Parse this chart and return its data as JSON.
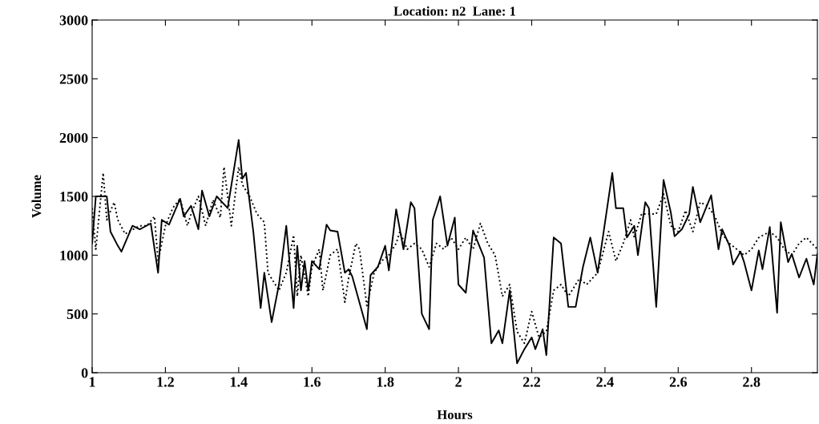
{
  "chart_data": {
    "type": "line",
    "title": "Location: n2  Lane: 1",
    "xlabel": "Hours",
    "ylabel": "Volume",
    "xlim": [
      1,
      2.98
    ],
    "xticks": [
      1,
      1.2,
      1.4,
      1.6,
      1.8,
      2,
      2.2,
      2.4,
      2.6,
      2.8
    ],
    "ylim": [
      0,
      3000
    ],
    "yticks": [
      0,
      500,
      1000,
      1500,
      2000,
      2500,
      3000
    ],
    "grid": false,
    "legend": false,
    "series": [
      {
        "color": "#000000",
        "line_style": "solid",
        "x": [
          1.0,
          1.01,
          1.04,
          1.05,
          1.07,
          1.08,
          1.11,
          1.13,
          1.16,
          1.18,
          1.19,
          1.21,
          1.24,
          1.25,
          1.27,
          1.29,
          1.3,
          1.32,
          1.34,
          1.37,
          1.4,
          1.41,
          1.42,
          1.44,
          1.46,
          1.47,
          1.49,
          1.51,
          1.53,
          1.55,
          1.56,
          1.57,
          1.58,
          1.59,
          1.6,
          1.62,
          1.64,
          1.65,
          1.67,
          1.69,
          1.7,
          1.71,
          1.75,
          1.76,
          1.78,
          1.8,
          1.81,
          1.83,
          1.85,
          1.87,
          1.88,
          1.9,
          1.92,
          1.93,
          1.95,
          1.97,
          1.99,
          2.0,
          2.02,
          2.04,
          2.07,
          2.09,
          2.11,
          2.12,
          2.14,
          2.16,
          2.18,
          2.2,
          2.21,
          2.23,
          2.24,
          2.26,
          2.28,
          2.3,
          2.32,
          2.34,
          2.36,
          2.38,
          2.42,
          2.43,
          2.45,
          2.46,
          2.48,
          2.49,
          2.51,
          2.52,
          2.54,
          2.56,
          2.58,
          2.59,
          2.61,
          2.63,
          2.64,
          2.66,
          2.69,
          2.71,
          2.72,
          2.74,
          2.75,
          2.77,
          2.78,
          2.8,
          2.82,
          2.83,
          2.85,
          2.87,
          2.88,
          2.9,
          2.91,
          2.93,
          2.95,
          2.97,
          2.98
        ],
        "values": [
          1100,
          1500,
          1500,
          1200,
          1080,
          1030,
          1250,
          1220,
          1270,
          850,
          1300,
          1260,
          1480,
          1330,
          1420,
          1220,
          1550,
          1330,
          1500,
          1400,
          1980,
          1650,
          1700,
          1200,
          550,
          850,
          430,
          750,
          1250,
          550,
          1080,
          700,
          950,
          700,
          950,
          880,
          1260,
          1210,
          1200,
          850,
          880,
          820,
          370,
          830,
          900,
          1080,
          870,
          1390,
          1050,
          1450,
          1400,
          500,
          370,
          1300,
          1500,
          1080,
          1320,
          750,
          680,
          1210,
          980,
          250,
          360,
          250,
          700,
          80,
          200,
          300,
          200,
          370,
          150,
          1150,
          1100,
          560,
          560,
          900,
          1150,
          850,
          1700,
          1400,
          1400,
          1150,
          1250,
          1000,
          1450,
          1400,
          560,
          1640,
          1360,
          1160,
          1220,
          1350,
          1580,
          1280,
          1510,
          1050,
          1220,
          1080,
          920,
          1030,
          940,
          700,
          1040,
          880,
          1240,
          510,
          1280,
          940,
          1010,
          810,
          970,
          750,
          1010
        ]
      },
      {
        "color": "#000000",
        "line_style": "dotted",
        "x": [
          1.0,
          1.01,
          1.03,
          1.04,
          1.06,
          1.07,
          1.09,
          1.1,
          1.13,
          1.15,
          1.17,
          1.18,
          1.2,
          1.22,
          1.24,
          1.26,
          1.27,
          1.29,
          1.31,
          1.33,
          1.35,
          1.36,
          1.38,
          1.4,
          1.41,
          1.43,
          1.45,
          1.47,
          1.48,
          1.51,
          1.53,
          1.55,
          1.56,
          1.57,
          1.59,
          1.6,
          1.62,
          1.63,
          1.65,
          1.67,
          1.69,
          1.7,
          1.72,
          1.73,
          1.75,
          1.77,
          1.79,
          1.81,
          1.83,
          1.84,
          1.86,
          1.88,
          1.9,
          1.92,
          1.94,
          1.96,
          1.98,
          2.0,
          2.02,
          2.04,
          2.06,
          2.08,
          2.1,
          2.12,
          2.14,
          2.16,
          2.18,
          2.2,
          2.22,
          2.24,
          2.26,
          2.28,
          2.3,
          2.33,
          2.35,
          2.38,
          2.41,
          2.43,
          2.45,
          2.47,
          2.48,
          2.5,
          2.52,
          2.54,
          2.56,
          2.58,
          2.6,
          2.62,
          2.64,
          2.66,
          2.68,
          2.7,
          2.72,
          2.74,
          2.76,
          2.78,
          2.8,
          2.82,
          2.85,
          2.87,
          2.89,
          2.91,
          2.93,
          2.95,
          2.98
        ],
        "values": [
          1400,
          1050,
          1700,
          1300,
          1450,
          1300,
          1180,
          1200,
          1250,
          1250,
          1330,
          950,
          1250,
          1400,
          1480,
          1250,
          1350,
          1500,
          1250,
          1470,
          1320,
          1750,
          1250,
          1750,
          1600,
          1500,
          1350,
          1280,
          850,
          700,
          850,
          1170,
          650,
          1000,
          650,
          900,
          1050,
          700,
          1000,
          1050,
          600,
          800,
          1100,
          1050,
          570,
          850,
          950,
          1000,
          1100,
          1200,
          1050,
          1100,
          1050,
          900,
          1100,
          1050,
          1150,
          1050,
          1150,
          1050,
          1270,
          1100,
          1000,
          650,
          750,
          350,
          250,
          520,
          300,
          350,
          700,
          750,
          650,
          800,
          750,
          850,
          1200,
          950,
          1100,
          1300,
          1150,
          1350,
          1350,
          1350,
          1520,
          1250,
          1200,
          1380,
          1200,
          1450,
          1420,
          1330,
          1180,
          1100,
          1050,
          1000,
          1050,
          1150,
          1200,
          1150,
          1050,
          1000,
          1100,
          1150,
          1050
        ]
      }
    ]
  }
}
